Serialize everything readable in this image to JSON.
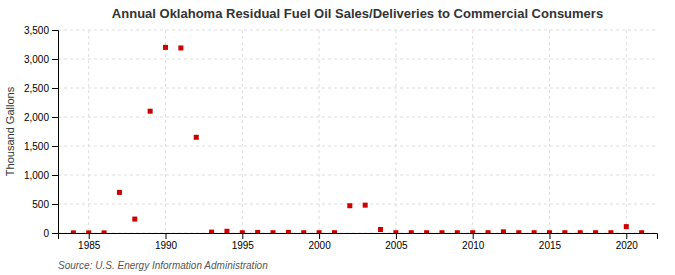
{
  "chart_data": {
    "type": "scatter",
    "title": "Annual Oklahoma Residual Fuel Oil Sales/Deliveries to Commercial Consumers",
    "ylabel": "Thousand Gallons",
    "source": "Source: U.S. Energy Information Administration",
    "x": [
      1984,
      1985,
      1986,
      1987,
      1988,
      1989,
      1990,
      1991,
      1992,
      1993,
      1994,
      1995,
      1996,
      1997,
      1998,
      1999,
      2000,
      2001,
      2002,
      2003,
      2004,
      2005,
      2006,
      2007,
      2008,
      2009,
      2010,
      2011,
      2012,
      2013,
      2014,
      2015,
      2016,
      2017,
      2018,
      2019,
      2020,
      2021
    ],
    "values": [
      2,
      2,
      2,
      700,
      240,
      2100,
      3200,
      3190,
      1650,
      15,
      30,
      5,
      10,
      5,
      10,
      5,
      5,
      5,
      470,
      480,
      60,
      5,
      5,
      5,
      5,
      5,
      5,
      5,
      20,
      5,
      5,
      5,
      5,
      5,
      5,
      5,
      110,
      5
    ],
    "color": "#cc0000",
    "marker": "square",
    "xlim": [
      1983,
      2022
    ],
    "ylim": [
      0,
      3500
    ],
    "xticks": [
      1985,
      1990,
      1995,
      2000,
      2005,
      2010,
      2015,
      2020
    ],
    "yticks": [
      0,
      500,
      {
        "value": 1000,
        "label": "1,000"
      },
      {
        "value": 1500,
        "label": "1,500"
      },
      {
        "value": 2000,
        "label": "2,000"
      },
      {
        "value": 2500,
        "label": "2,500"
      },
      {
        "value": 3000,
        "label": "3,000"
      },
      {
        "value": 3500,
        "label": "3,500"
      }
    ],
    "grid": true
  }
}
